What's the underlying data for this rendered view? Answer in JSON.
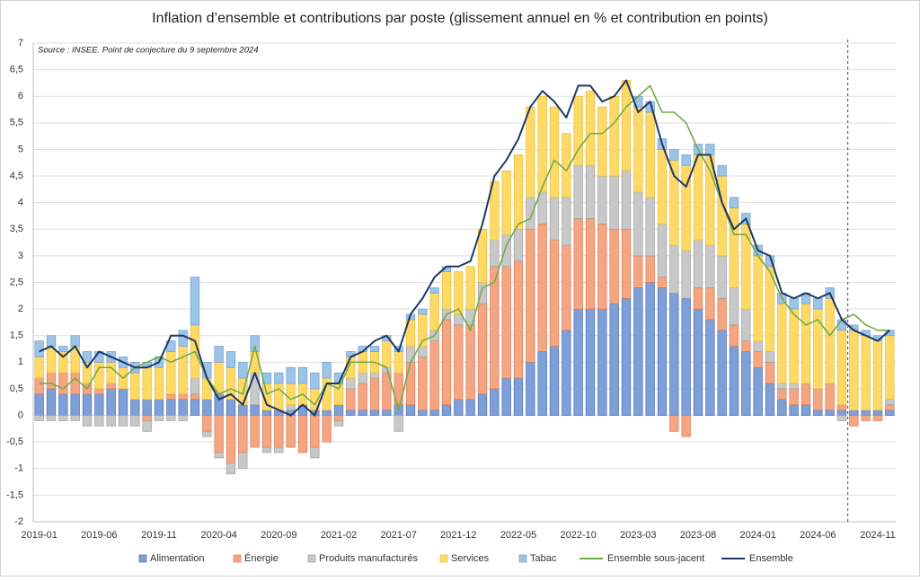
{
  "chart_data": {
    "type": "bar",
    "title": "Inflation d’ensemble et contributions par poste (glissement annuel en % et contribution en points)",
    "annotation": "Source : INSEE. Point de conjecture du 9 septembre 2024",
    "categories": [
      "2019-01",
      null,
      null,
      null,
      null,
      "2019-06",
      null,
      null,
      null,
      null,
      "2019-11",
      null,
      null,
      null,
      null,
      "2020-04",
      null,
      null,
      null,
      null,
      "2020-09",
      null,
      null,
      null,
      null,
      "2021-02",
      null,
      null,
      null,
      null,
      "2021-07",
      null,
      null,
      null,
      null,
      "2021-12",
      null,
      null,
      null,
      null,
      "2022-05",
      null,
      null,
      null,
      null,
      "2022-10",
      null,
      null,
      null,
      null,
      "2023-03",
      null,
      null,
      null,
      null,
      "2023-08",
      null,
      null,
      null,
      null,
      "2024-01",
      null,
      null,
      null,
      null,
      "2024-06",
      null,
      null,
      null,
      null,
      "2024-11",
      null
    ],
    "ylim": [
      -2,
      7
    ],
    "yticks": [
      -2,
      {
        "value": -1.5,
        "label": "-1,5"
      },
      -1,
      {
        "value": -0.5,
        "label": "-0,5"
      },
      0,
      {
        "value": 0.5,
        "label": "0,5"
      },
      1,
      {
        "value": 1.5,
        "label": "1,5"
      },
      2,
      {
        "value": 2.5,
        "label": "2,5"
      },
      3,
      {
        "value": 3.5,
        "label": "3,5"
      },
      4,
      {
        "value": 4.5,
        "label": "4,5"
      },
      5,
      {
        "value": 5.5,
        "label": "5,5"
      },
      6,
      {
        "value": 6.5,
        "label": "6,5"
      },
      7
    ],
    "grid": true,
    "legend": "bottom",
    "series": [
      {
        "name": "Alimentation",
        "type": "bar",
        "color": "#7f9fd9",
        "stroke": "#4a6fb5",
        "values": [
          0.4,
          0.5,
          0.4,
          0.4,
          0.4,
          0.4,
          0.5,
          0.5,
          0.3,
          0.3,
          0.3,
          0.3,
          0.3,
          0.3,
          0.3,
          0.4,
          0.3,
          0.2,
          0.2,
          0.1,
          0.1,
          0.1,
          0.2,
          0.1,
          0.1,
          0.2,
          0.1,
          0.1,
          0.1,
          0.1,
          0.2,
          0.2,
          0.1,
          0.1,
          0.2,
          0.3,
          0.3,
          0.4,
          0.5,
          0.7,
          0.7,
          1.0,
          1.2,
          1.3,
          1.6,
          2.0,
          2.0,
          2.0,
          2.1,
          2.2,
          2.4,
          2.5,
          2.4,
          2.3,
          2.2,
          2.0,
          1.8,
          1.6,
          1.3,
          1.2,
          0.9,
          0.6,
          0.3,
          0.2,
          0.2,
          0.1,
          0.1,
          0.1,
          0.1,
          0.1,
          0.1,
          0.1
        ]
      },
      {
        "name": "Énergie",
        "type": "bar",
        "color": "#f4a582",
        "stroke": "#e07b54",
        "values": [
          0.3,
          0.3,
          0.4,
          0.4,
          0.2,
          0.1,
          0.1,
          0,
          0,
          -0.1,
          0,
          0.1,
          0.1,
          0.1,
          -0.3,
          -0.7,
          -0.9,
          -0.7,
          -0.6,
          -0.6,
          -0.6,
          -0.6,
          -0.7,
          -0.6,
          -0.5,
          -0.1,
          0.4,
          0.5,
          0.6,
          0.7,
          0.6,
          0.8,
          1.0,
          1.3,
          1.6,
          1.4,
          1.4,
          1.7,
          2.3,
          2.1,
          2.2,
          2.5,
          2.4,
          2.0,
          1.6,
          1.7,
          1.7,
          1.6,
          1.4,
          1.3,
          0.6,
          0.5,
          0.2,
          -0.3,
          -0.4,
          0.4,
          0.6,
          0.6,
          0.4,
          0.2,
          0.3,
          0.4,
          0.2,
          0.3,
          0.4,
          0.4,
          0.5,
          0.1,
          -0.2,
          -0.1,
          -0.1,
          0.1
        ]
      },
      {
        "name": "Produits manufacturés",
        "type": "bar",
        "color": "#c8c8c8",
        "stroke": "#a0a0a0",
        "values": [
          -0.1,
          -0.1,
          -0.1,
          -0.1,
          -0.2,
          -0.2,
          -0.2,
          -0.2,
          -0.2,
          -0.2,
          -0.1,
          -0.1,
          -0.1,
          0.3,
          -0.1,
          -0.1,
          -0.2,
          -0.3,
          0.6,
          -0.1,
          -0.1,
          0.1,
          0,
          -0.2,
          0,
          -0.1,
          0.2,
          0.2,
          0.1,
          0.1,
          -0.3,
          0.3,
          0.2,
          0.2,
          0.2,
          0.2,
          0.3,
          0.4,
          0.5,
          0.6,
          0.6,
          0.6,
          0.6,
          0.8,
          0.9,
          1.0,
          1.0,
          0.9,
          1.0,
          1.1,
          1.2,
          1.1,
          1.0,
          0.9,
          0.9,
          0.9,
          0.8,
          0.8,
          0.7,
          0.6,
          0.2,
          0.2,
          0.1,
          0.1,
          0,
          0,
          0,
          -0.1,
          0,
          0,
          0,
          0.1
        ]
      },
      {
        "name": "Services",
        "type": "bar",
        "color": "#ffd966",
        "stroke": "#e8bf3a",
        "values": [
          0.4,
          0.5,
          0.4,
          0.5,
          0.4,
          0.5,
          0.4,
          0.4,
          0.5,
          0.6,
          0.6,
          0.8,
          0.9,
          1.0,
          0.4,
          0.6,
          0.6,
          0.5,
          0.4,
          0.5,
          0.5,
          0.4,
          0.4,
          0.4,
          0.6,
          0.4,
          0.4,
          0.4,
          0.4,
          0.5,
          0.4,
          0.5,
          0.6,
          0.7,
          0.7,
          0.8,
          0.8,
          1.0,
          1.1,
          1.2,
          1.4,
          1.7,
          1.8,
          1.7,
          1.2,
          1.3,
          1.4,
          1.3,
          1.5,
          1.7,
          1.6,
          1.6,
          1.4,
          1.6,
          1.6,
          1.6,
          1.7,
          1.5,
          1.5,
          1.6,
          1.6,
          1.6,
          1.5,
          1.4,
          1.5,
          1.5,
          1.6,
          1.4,
          1.5,
          1.4,
          1.3,
          1.2
        ]
      },
      {
        "name": "Tabac",
        "type": "bar",
        "color": "#9dc3e6",
        "stroke": "#6fa0d0",
        "values": [
          0.3,
          0.2,
          0.1,
          0.2,
          0.2,
          0.2,
          0.2,
          0.2,
          0.2,
          0.1,
          0.2,
          0.2,
          0.3,
          0.9,
          0.3,
          0.3,
          0.3,
          0.3,
          0.3,
          0.2,
          0.2,
          0.3,
          0.3,
          0.3,
          0.3,
          0.2,
          0.1,
          0.1,
          0.1,
          0.1,
          0.1,
          0.1,
          0.1,
          0.1,
          0.1,
          0,
          0,
          0,
          0,
          0,
          0,
          0,
          0,
          0,
          0,
          0,
          0,
          0,
          0,
          0,
          0.2,
          0.2,
          0.2,
          0.2,
          0.2,
          0.2,
          0.2,
          0.2,
          0.2,
          0.2,
          0.2,
          0.2,
          0.2,
          0.2,
          0.2,
          0.2,
          0.2,
          0.2,
          0.1,
          0.1,
          0.1,
          0.1
        ]
      },
      {
        "name": "Ensemble sous-jacent",
        "type": "line",
        "color": "#70ad47",
        "values": [
          0.6,
          0.6,
          0.5,
          0.7,
          0.5,
          0.9,
          0.9,
          0.7,
          0.9,
          1.0,
          1.1,
          1.0,
          1.1,
          1.2,
          0.7,
          0.4,
          0.5,
          0.4,
          1.3,
          0.4,
          0.5,
          0.3,
          0.4,
          0.2,
          0.6,
          0.5,
          1.0,
          1.0,
          1.0,
          0.9,
          0.1,
          1.0,
          1.4,
          1.5,
          1.9,
          2.0,
          1.6,
          2.4,
          2.5,
          3.2,
          3.6,
          3.7,
          4.3,
          4.8,
          4.6,
          5.0,
          5.3,
          5.3,
          5.5,
          5.8,
          6.0,
          6.2,
          5.7,
          5.7,
          5.5,
          5.0,
          4.6,
          4.0,
          3.4,
          3.4,
          3.0,
          2.7,
          2.2,
          1.9,
          1.7,
          1.8,
          1.5,
          1.8,
          1.9,
          1.7,
          1.6,
          1.6
        ]
      },
      {
        "name": "Ensemble",
        "type": "line",
        "color": "#1f3864",
        "values": [
          1.2,
          1.3,
          1.1,
          1.3,
          0.9,
          1.2,
          1.1,
          1.0,
          0.9,
          0.9,
          1.0,
          1.5,
          1.5,
          1.4,
          0.7,
          0.3,
          0.4,
          0.2,
          0.8,
          0.2,
          0.1,
          0.0,
          0.2,
          0.0,
          0.6,
          0.6,
          1.1,
          1.2,
          1.4,
          1.5,
          1.2,
          1.9,
          2.2,
          2.6,
          2.8,
          2.8,
          2.9,
          3.6,
          4.5,
          4.8,
          5.2,
          5.8,
          6.1,
          5.9,
          5.6,
          6.2,
          6.2,
          5.9,
          6.0,
          6.3,
          5.7,
          5.9,
          5.1,
          4.5,
          4.3,
          4.9,
          4.9,
          4.0,
          3.5,
          3.7,
          3.1,
          3.0,
          2.3,
          2.2,
          2.3,
          2.2,
          2.3,
          1.8,
          1.6,
          1.5,
          1.4,
          1.6
        ]
      }
    ]
  }
}
